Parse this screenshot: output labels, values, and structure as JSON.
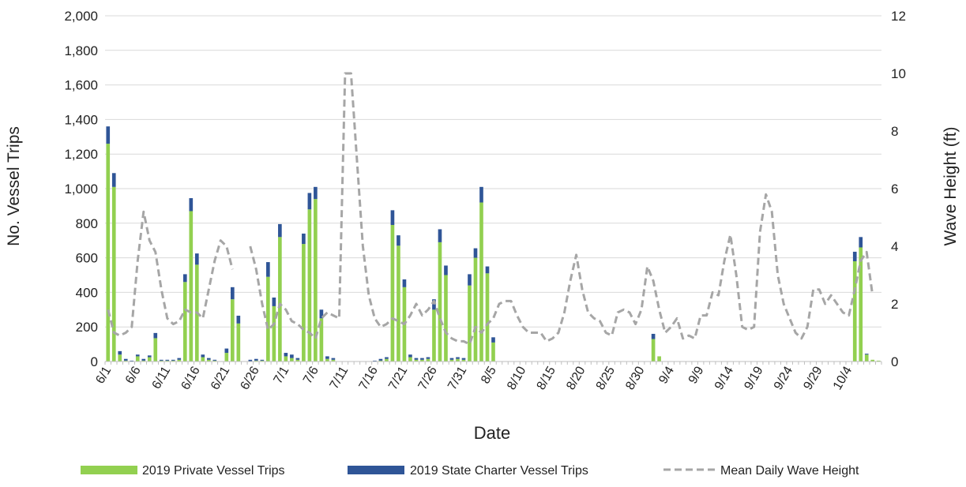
{
  "chart_data": {
    "type": "bar",
    "stacked": true,
    "dual_axis": true,
    "xlabel": "Date",
    "ylabel": "No. Vessel Trips",
    "y2label": "Wave Height (ft)",
    "ylim": [
      0,
      2000
    ],
    "y2lim": [
      0,
      12
    ],
    "yticks": [
      0,
      200,
      400,
      600,
      800,
      1000,
      1200,
      1400,
      1600,
      1800,
      2000
    ],
    "ytick_labels": [
      "0",
      "200",
      "400",
      "600",
      "800",
      "1,000",
      "1,200",
      "1,400",
      "1,600",
      "1,800",
      "2,000"
    ],
    "y2ticks": [
      0,
      2,
      4,
      6,
      8,
      10,
      12
    ],
    "y2tick_labels": [
      "0",
      "2",
      "4",
      "6",
      "8",
      "10",
      "12"
    ],
    "grid": "horizontal",
    "legend_position": "bottom",
    "x_tick_labels": [
      "6/1",
      "6/6",
      "6/11",
      "6/16",
      "6/21",
      "6/26",
      "7/1",
      "7/6",
      "7/11",
      "7/16",
      "7/21",
      "7/26",
      "7/31",
      "8/5",
      "8/10",
      "8/15",
      "8/20",
      "8/25",
      "8/30",
      "9/4",
      "9/9",
      "9/14",
      "9/19",
      "9/24",
      "9/29",
      "10/4"
    ],
    "x_tick_every": 5,
    "series": [
      {
        "name": "2019 Private Vessel Trips",
        "kind": "bar",
        "axis": "left",
        "color": "#92d050",
        "values": [
          1260,
          1010,
          40,
          5,
          0,
          30,
          5,
          25,
          135,
          5,
          5,
          5,
          10,
          460,
          870,
          560,
          25,
          10,
          5,
          0,
          50,
          360,
          220,
          0,
          0,
          5,
          5,
          490,
          320,
          720,
          30,
          20,
          10,
          680,
          880,
          940,
          250,
          15,
          10,
          0,
          0,
          0,
          0,
          0,
          0,
          0,
          5,
          15,
          790,
          670,
          430,
          25,
          10,
          10,
          15,
          300,
          690,
          500,
          10,
          15,
          10,
          440,
          600,
          920,
          510,
          110,
          0,
          0,
          0,
          0,
          0,
          0,
          0,
          0,
          0,
          0,
          0,
          0,
          0,
          0,
          0,
          0,
          0,
          0,
          0,
          0,
          0,
          0,
          0,
          0,
          0,
          0,
          130,
          30,
          0,
          0,
          0,
          0,
          0,
          0,
          0,
          0,
          0,
          0,
          0,
          0,
          0,
          0,
          0,
          0,
          0,
          0,
          0,
          0,
          0,
          0,
          0,
          0,
          0,
          0,
          0,
          0,
          0,
          0,
          0,
          0,
          580,
          660,
          40,
          10,
          5
        ]
      },
      {
        "name": "2019 State Charter Vessel Trips",
        "kind": "bar",
        "axis": "left",
        "color": "#2f5597",
        "values": [
          100,
          80,
          20,
          10,
          5,
          10,
          10,
          10,
          30,
          5,
          5,
          5,
          10,
          45,
          75,
          65,
          15,
          10,
          5,
          0,
          25,
          70,
          45,
          0,
          10,
          10,
          5,
          85,
          50,
          75,
          20,
          20,
          10,
          60,
          95,
          70,
          50,
          15,
          10,
          0,
          0,
          0,
          0,
          0,
          0,
          5,
          10,
          10,
          85,
          60,
          45,
          15,
          10,
          10,
          10,
          60,
          75,
          55,
          10,
          10,
          10,
          65,
          55,
          90,
          40,
          30,
          0,
          0,
          0,
          0,
          0,
          0,
          0,
          0,
          0,
          0,
          0,
          0,
          0,
          0,
          0,
          0,
          0,
          0,
          0,
          0,
          0,
          0,
          0,
          0,
          0,
          0,
          30,
          0,
          0,
          0,
          0,
          0,
          0,
          0,
          0,
          0,
          0,
          0,
          0,
          0,
          0,
          0,
          0,
          0,
          0,
          0,
          0,
          0,
          0,
          0,
          0,
          0,
          0,
          0,
          0,
          0,
          0,
          0,
          0,
          0,
          55,
          60,
          5,
          0,
          0
        ]
      },
      {
        "name": "Mean Daily Wave Height",
        "kind": "line",
        "axis": "right",
        "dashed": true,
        "color": "#a6a6a6",
        "values": [
          1.8,
          1.0,
          0.9,
          1.0,
          1.2,
          3.5,
          5.2,
          4.2,
          3.8,
          2.5,
          1.5,
          1.3,
          1.4,
          1.8,
          1.7,
          1.7,
          1.5,
          2.5,
          3.5,
          4.2,
          4.0,
          3.2,
          null,
          null,
          4.0,
          3.2,
          2.0,
          1.1,
          1.3,
          2.0,
          1.8,
          1.4,
          1.3,
          1.1,
          1.0,
          0.8,
          1.5,
          1.7,
          1.6,
          1.5,
          10.0,
          10.0,
          7.0,
          4.0,
          2.3,
          1.5,
          1.2,
          1.3,
          1.5,
          1.4,
          1.3,
          1.6,
          2.0,
          1.6,
          1.8,
          2.1,
          1.5,
          1.0,
          0.8,
          0.7,
          0.7,
          0.6,
          1.2,
          1.0,
          1.3,
          1.5,
          2.0,
          2.1,
          2.1,
          1.6,
          1.2,
          1.0,
          1.0,
          1.0,
          0.7,
          0.8,
          1.0,
          1.7,
          2.8,
          3.7,
          2.5,
          1.7,
          1.5,
          1.4,
          1.0,
          0.9,
          1.7,
          1.8,
          1.7,
          1.3,
          1.8,
          3.3,
          2.8,
          1.8,
          1.0,
          1.2,
          1.5,
          0.8,
          0.9,
          0.8,
          1.6,
          1.6,
          2.4,
          2.3,
          3.5,
          4.4,
          3.0,
          1.2,
          1.1,
          1.2,
          4.5,
          5.8,
          5.2,
          3.0,
          2.0,
          1.5,
          1.0,
          0.8,
          1.2,
          2.5,
          2.5,
          2.0,
          2.3,
          2.0,
          1.7,
          1.6,
          2.5,
          3.5,
          3.8,
          2.3
        ]
      }
    ]
  }
}
